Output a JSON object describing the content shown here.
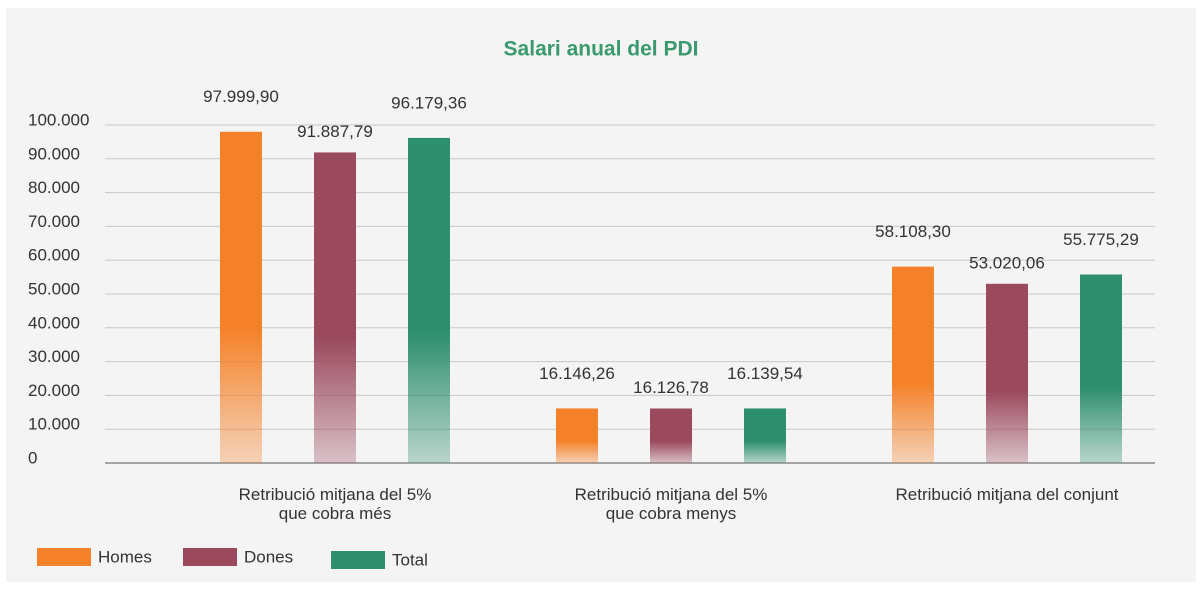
{
  "chart_data": {
    "type": "bar",
    "title": "Salari anual del PDI",
    "categories": [
      "Retribució mitjana del 5%\nque cobra més",
      "Retribució mitjana del 5%\nque cobra menys",
      "Retribució mitjana del conjunt"
    ],
    "series": [
      {
        "name": "Homes",
        "color": "#f5822a",
        "values": [
          97999.9,
          16146.26,
          58108.3
        ],
        "value_labels": [
          "97.999,90",
          "16.146,26",
          "58.108,30"
        ]
      },
      {
        "name": "Dones",
        "color": "#9b4a5e",
        "values": [
          91887.79,
          16126.78,
          53020.06
        ],
        "value_labels": [
          "91.887,79",
          "16.126,78",
          "53.020,06"
        ]
      },
      {
        "name": "Total",
        "color": "#2e8f6e",
        "values": [
          96179.36,
          16139.54,
          55775.29
        ],
        "value_labels": [
          "96.179,36",
          "16.139,54",
          "55.775,29"
        ]
      }
    ],
    "ylim": [
      0,
      100000
    ],
    "yticks": [
      0,
      {
        "value": 10000,
        "label": "10.000"
      },
      {
        "value": 20000,
        "label": "20.000"
      },
      {
        "value": 30000,
        "label": "30.000"
      },
      {
        "value": 40000,
        "label": "40.000"
      },
      {
        "value": 50000,
        "label": "50.000"
      },
      {
        "value": 60000,
        "label": "60.000"
      },
      {
        "value": 70000,
        "label": "70.000"
      },
      {
        "value": 80000,
        "label": "80.000"
      },
      {
        "value": 90000,
        "label": "90.000"
      },
      {
        "value": 100000,
        "label": "100.000"
      }
    ],
    "grid": true,
    "legend": "bottom-left"
  }
}
